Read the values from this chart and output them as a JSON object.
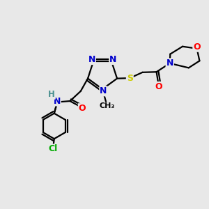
{
  "bg_color": "#e8e8e8",
  "atom_colors": {
    "C": "#000000",
    "N": "#0000cc",
    "O": "#ff0000",
    "S": "#cccc00",
    "Cl": "#00aa00",
    "H": "#4a9090"
  },
  "bond_color": "#000000",
  "lw": 1.6
}
